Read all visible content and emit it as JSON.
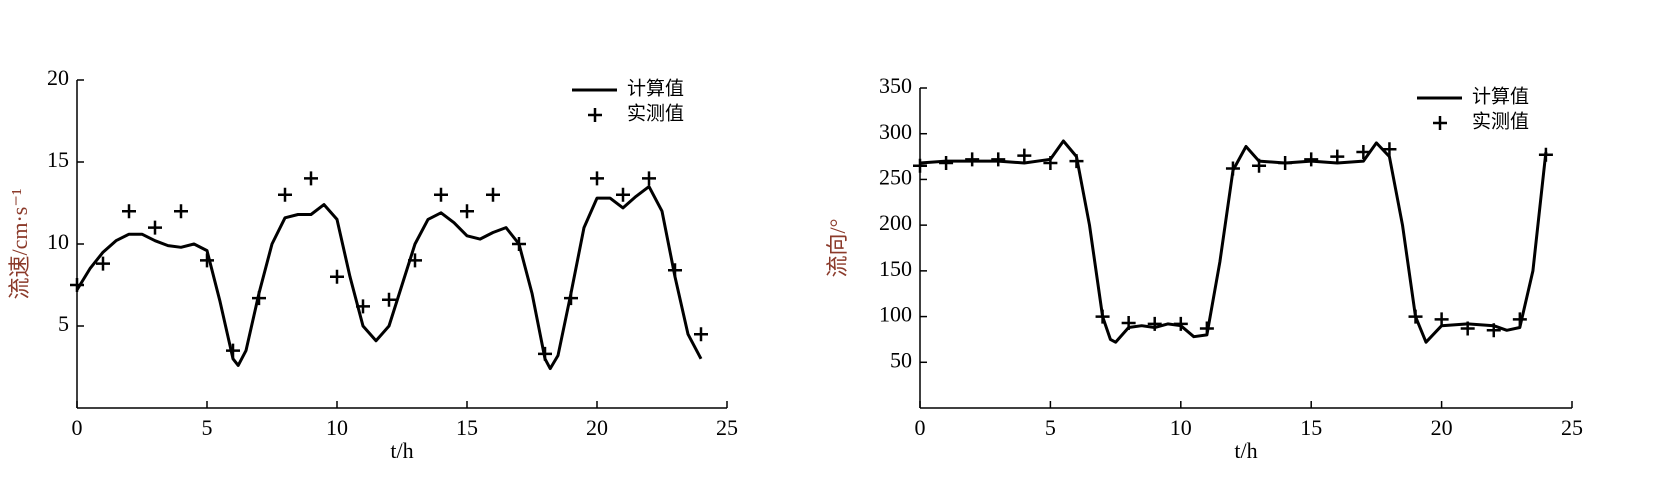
{
  "chart_data": [
    {
      "type": "line",
      "x_label": "t/h",
      "y_label": "流速/cm·s⁻¹",
      "xlim": [
        0,
        25
      ],
      "ylim": [
        0,
        20
      ],
      "xticks": [
        0,
        5,
        10,
        15,
        20,
        25
      ],
      "yticks": [
        5,
        10,
        15,
        20
      ],
      "legend": "upper right",
      "series": [
        {
          "name": "计算值",
          "type": "line",
          "color": "#000000",
          "x": [
            0,
            0.5,
            1,
            1.5,
            2,
            2.5,
            3,
            3.5,
            4,
            4.5,
            5,
            5.5,
            6,
            6.2,
            6.5,
            7,
            7.5,
            8,
            8.5,
            9,
            9.5,
            10,
            10.5,
            11,
            11.5,
            12,
            12.5,
            13,
            13.5,
            14,
            14.5,
            15,
            15.5,
            16,
            16.5,
            17,
            17.5,
            18,
            18.2,
            18.5,
            19,
            19.5,
            20,
            20.5,
            21,
            21.5,
            22,
            22.5,
            23,
            23.5,
            24
          ],
          "values": [
            7.2,
            8.5,
            9.5,
            10.2,
            10.6,
            10.6,
            10.2,
            9.9,
            9.8,
            10.0,
            9.6,
            6.5,
            3.0,
            2.6,
            3.5,
            7.0,
            10.0,
            11.6,
            11.8,
            11.8,
            12.4,
            11.5,
            8.0,
            5.0,
            4.1,
            5.0,
            7.5,
            10.0,
            11.5,
            11.9,
            11.3,
            10.5,
            10.3,
            10.7,
            11.0,
            10.0,
            7.0,
            3.0,
            2.4,
            3.2,
            7.0,
            11.0,
            12.8,
            12.8,
            12.2,
            12.9,
            13.5,
            12.0,
            8.0,
            4.5,
            3.0
          ]
        },
        {
          "name": "实测值",
          "type": "scatter",
          "color": "#000000",
          "x": [
            0,
            1,
            2,
            3,
            4,
            5,
            6,
            7,
            8,
            9,
            10,
            11,
            12,
            13,
            14,
            15,
            16,
            17,
            18,
            19,
            20,
            21,
            22,
            23,
            24
          ],
          "values": [
            7.5,
            8.8,
            12,
            11,
            12,
            9,
            3.5,
            6.7,
            13,
            14,
            8,
            6.2,
            6.6,
            9,
            13,
            12,
            13,
            10,
            3.3,
            6.7,
            14,
            13,
            14,
            8.4,
            4.5
          ]
        }
      ]
    },
    {
      "type": "line",
      "x_label": "t/h",
      "y_label": "流向/°",
      "xlim": [
        0,
        25
      ],
      "ylim": [
        0,
        350
      ],
      "xticks": [
        0,
        5,
        10,
        15,
        20,
        25
      ],
      "yticks": [
        50,
        100,
        150,
        200,
        250,
        300,
        350
      ],
      "legend": "upper right",
      "series": [
        {
          "name": "计算值",
          "type": "line",
          "color": "#000000",
          "x": [
            0,
            1,
            2,
            3,
            4,
            5,
            5.5,
            6,
            6.5,
            7,
            7.3,
            7.5,
            8,
            8.5,
            9,
            9.5,
            10,
            10.5,
            11,
            11.5,
            12,
            12.5,
            13,
            14,
            15,
            16,
            17,
            17.5,
            18,
            18.5,
            19,
            19.4,
            20,
            21,
            22,
            22.5,
            23,
            23.5,
            24
          ],
          "values": [
            268,
            270,
            270,
            270,
            268,
            272,
            292,
            275,
            200,
            100,
            75,
            72,
            88,
            90,
            88,
            92,
            90,
            78,
            80,
            160,
            260,
            286,
            270,
            268,
            270,
            268,
            270,
            290,
            275,
            200,
            100,
            72,
            90,
            92,
            90,
            85,
            88,
            150,
            280
          ]
        },
        {
          "name": "实测值",
          "type": "scatter",
          "color": "#000000",
          "x": [
            0,
            1,
            2,
            3,
            4,
            5,
            6,
            7,
            8,
            9,
            10,
            11,
            12,
            13,
            14,
            15,
            16,
            17,
            18,
            19,
            20,
            21,
            22,
            23,
            24
          ],
          "values": [
            265,
            268,
            272,
            272,
            276,
            268,
            270,
            100,
            93,
            92,
            92,
            87,
            262,
            265,
            268,
            272,
            275,
            280,
            283,
            100,
            97,
            87,
            85,
            97,
            277
          ]
        }
      ]
    }
  ]
}
